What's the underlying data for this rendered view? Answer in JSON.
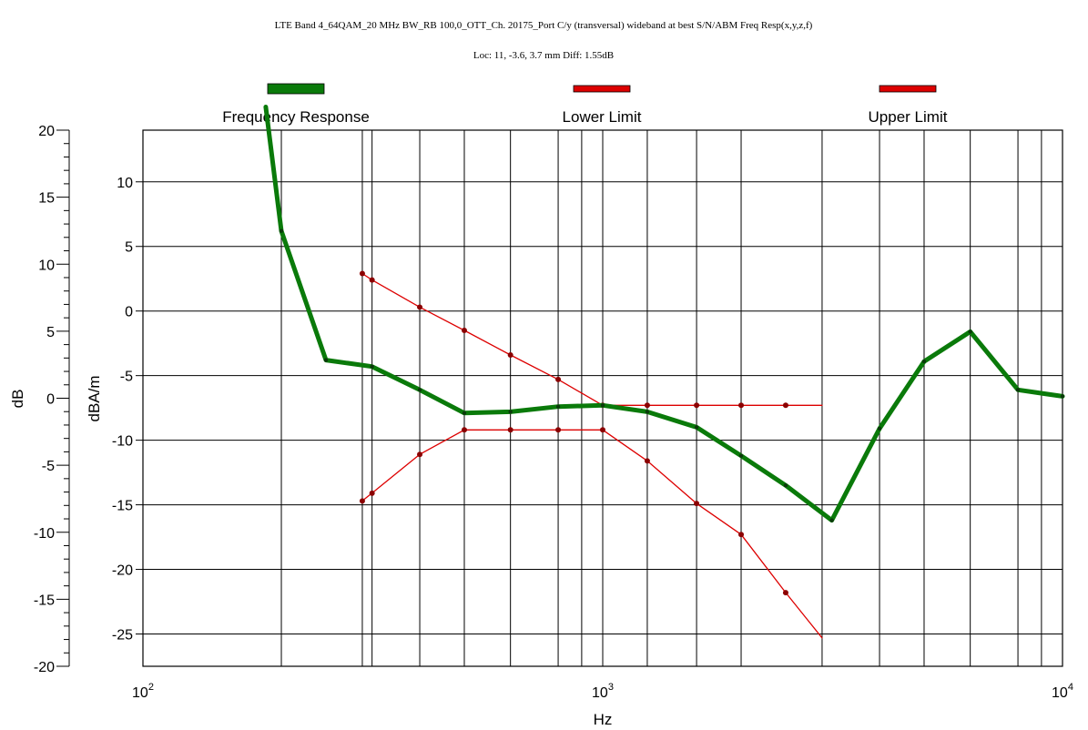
{
  "chart_data": {
    "type": "line",
    "title": "LTE Band 4_64QAM_20 MHz BW_RB 100,0_OTT_Ch. 20175_Port C/y (transversal) wideband at best S/N/ABM Freq Resp(x,y,z,f)",
    "subtitle": "Loc: 11, -3.6, 3.7 mm Diff: 1.55dB",
    "xlabel": "Hz",
    "ylabel_outer": "dB",
    "ylabel_inner": "dBA/m",
    "x_scale": "log",
    "xlim": [
      100,
      10000
    ],
    "x_tick_labels": [
      {
        "value": 100,
        "base": "10",
        "exp": "2"
      },
      {
        "value": 1000,
        "base": "10",
        "exp": "3"
      },
      {
        "value": 10000,
        "base": "10",
        "exp": "4"
      }
    ],
    "ylim_outer": [
      -20,
      20
    ],
    "outer_ticks": [
      20,
      15,
      10,
      5,
      0,
      -5,
      -10,
      -15,
      -20
    ],
    "ylim_inner": [
      -27.5,
      14
    ],
    "inner_ticks": [
      10,
      5,
      0,
      -5,
      -10,
      -15,
      -20,
      -25
    ],
    "x_gridlines": [
      200,
      300,
      315,
      400,
      500,
      630,
      800,
      900,
      1000,
      1250,
      1600,
      2000,
      3000,
      4000,
      5000,
      6300,
      8000,
      9000
    ],
    "grid": true,
    "legend_placement": "top",
    "series": [
      {
        "name": "Frequency Response",
        "color": "#0a7a0a",
        "x": [
          185,
          200,
          250,
          315,
          400,
          500,
          630,
          800,
          1000,
          1250,
          1600,
          2000,
          2500,
          3150,
          4000,
          5000,
          6300,
          8000,
          10000
        ],
        "y": [
          15.8,
          6.2,
          -3.8,
          -4.3,
          -6.1,
          -7.9,
          -7.8,
          -7.4,
          -7.3,
          -7.8,
          -9,
          -11.2,
          -13.5,
          -16.2,
          -9.1,
          -3.9,
          -1.6,
          -6.1,
          -6.6
        ]
      },
      {
        "name": "Lower Limit",
        "color": "#dd0000",
        "x": [
          300,
          315,
          400,
          500,
          630,
          800,
          1000,
          1250,
          1600,
          2000,
          2500,
          3000
        ],
        "y": [
          -14.7,
          -14.1,
          -11.1,
          -9.2,
          -9.2,
          -9.2,
          -9.2,
          -11.6,
          -14.9,
          -17.3,
          -21.8,
          -25.3
        ]
      },
      {
        "name": "Upper Limit",
        "color": "#dd0000",
        "x": [
          300,
          315,
          400,
          500,
          630,
          800,
          1000,
          1250,
          1600,
          2000,
          2500,
          3000
        ],
        "y": [
          2.9,
          2.4,
          0.3,
          -1.5,
          -3.4,
          -5.3,
          -7.3,
          -7.3,
          -7.3,
          -7.3,
          -7.3,
          -7.3
        ]
      }
    ]
  }
}
